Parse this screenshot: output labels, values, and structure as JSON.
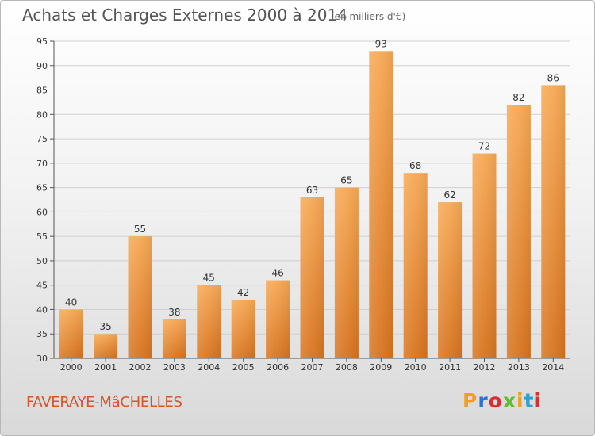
{
  "header": {
    "title": "Achats et Charges Externes 2000 à 2014",
    "units": "(en milliers d'€)"
  },
  "footer": {
    "commune": "FAVERAYE-MâCHELLES",
    "logo": "Proxiti",
    "logo_colors": [
      "#f0a020",
      "#2f6fd0",
      "#d83030",
      "#5fbf30",
      "#f0a020",
      "#2fa0d0",
      "#d83030"
    ]
  },
  "chart_data": {
    "type": "bar",
    "title": "Achats et Charges Externes 2000 à 2014",
    "subtitle": "(en milliers d'€)",
    "xlabel": "",
    "ylabel": "",
    "categories": [
      "2000",
      "2001",
      "2002",
      "2003",
      "2004",
      "2005",
      "2006",
      "2007",
      "2008",
      "2009",
      "2010",
      "2011",
      "2012",
      "2013",
      "2014"
    ],
    "values": [
      40,
      35,
      55,
      38,
      45,
      42,
      46,
      63,
      65,
      93,
      68,
      62,
      72,
      82,
      86
    ],
    "ylim": [
      30,
      95
    ],
    "yticks": [
      30,
      35,
      40,
      45,
      50,
      55,
      60,
      65,
      70,
      75,
      80,
      85,
      90,
      95
    ],
    "grid": true,
    "bar_color_light": "#f7a955",
    "bar_color_dark": "#d7741f"
  }
}
